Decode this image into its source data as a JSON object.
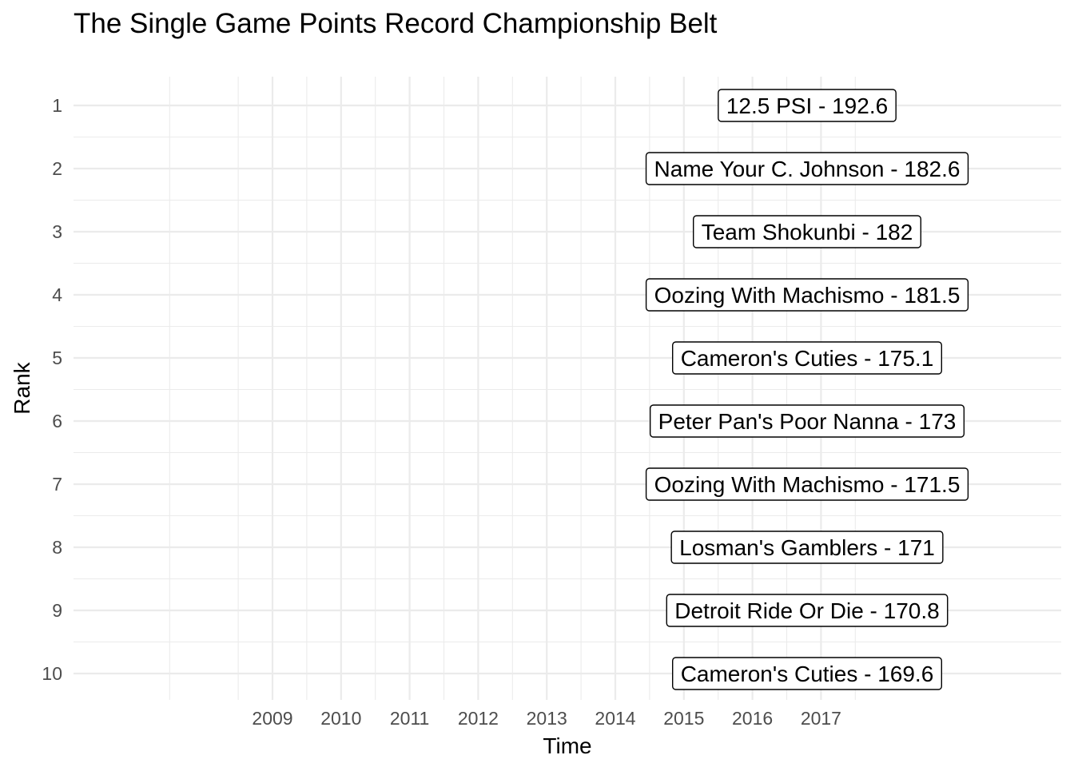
{
  "chart_data": {
    "type": "table",
    "title": "The Single Game Points Record Championship Belt",
    "xlabel": "Time",
    "ylabel": "Rank",
    "x_ticks": [
      "2009",
      "2010",
      "2011",
      "2012",
      "2013",
      "2014",
      "2015",
      "2016",
      "2017"
    ],
    "y_ticks": [
      "1",
      "2",
      "3",
      "4",
      "5",
      "6",
      "7",
      "8",
      "9",
      "10"
    ],
    "grid": true,
    "rows": [
      {
        "rank": 1,
        "label": "12.5 PSI - 192.6",
        "team": "12.5 PSI",
        "points": 192.6
      },
      {
        "rank": 2,
        "label": "Name Your C. Johnson - 182.6",
        "team": "Name Your C. Johnson",
        "points": 182.6
      },
      {
        "rank": 3,
        "label": "Team Shokunbi - 182",
        "team": "Team Shokunbi",
        "points": 182
      },
      {
        "rank": 4,
        "label": "Oozing With Machismo - 181.5",
        "team": "Oozing With Machismo",
        "points": 181.5
      },
      {
        "rank": 5,
        "label": "Cameron's Cuties - 175.1",
        "team": "Cameron's Cuties",
        "points": 175.1
      },
      {
        "rank": 6,
        "label": "Peter Pan's Poor Nanna - 173",
        "team": "Peter Pan's Poor Nanna",
        "points": 173
      },
      {
        "rank": 7,
        "label": "Oozing With Machismo - 171.5",
        "team": "Oozing With Machismo",
        "points": 171.5
      },
      {
        "rank": 8,
        "label": "Losman's Gamblers - 171",
        "team": "Losman's Gamblers",
        "points": 171
      },
      {
        "rank": 9,
        "label": "Detroit Ride Or Die - 170.8",
        "team": "Detroit Ride Or Die",
        "points": 170.8
      },
      {
        "rank": 10,
        "label": "Cameron's Cuties - 169.6",
        "team": "Cameron's Cuties",
        "points": 169.6
      }
    ]
  }
}
